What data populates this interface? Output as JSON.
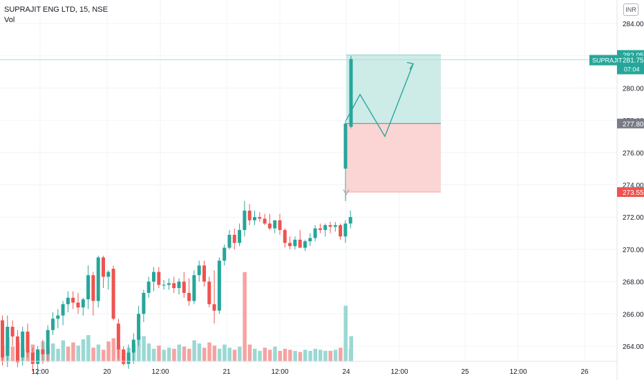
{
  "header": {
    "symbol_title": "SUPRAJIT ENG LTD, 15, NSE",
    "volume_label": "Vol",
    "currency": "INR"
  },
  "colors": {
    "up": "#26a69a",
    "down": "#ef5350",
    "vol_up": "#9bd8d3",
    "vol_down": "#f5a3a2",
    "target_zone": "#cdebe7",
    "stop_zone": "#fbd5d4",
    "projection": "#26a69a",
    "grid": "#f0f3fa"
  },
  "chart_data": {
    "type": "candlestick",
    "symbol": "SUPRAJIT ENG LTD",
    "interval": "15",
    "exchange": "NSE",
    "y_ticks": [
      284.0,
      282.0,
      280.0,
      278.0,
      276.0,
      274.0,
      272.0,
      270.0,
      268.0,
      266.0,
      264.0
    ],
    "x_ticks": [
      "12:00",
      "20",
      "12:00",
      "21",
      "12:00",
      "24",
      "12:00",
      "25",
      "12:00",
      "26"
    ],
    "price_markers": {
      "current": {
        "symbol_label": "SUPRAJIT",
        "price": "281.75",
        "countdown": "07:04"
      },
      "target": "282.05",
      "entry": "277.80",
      "stop": "273.55"
    },
    "candles": [
      [
        265.6,
        265.9,
        262.8,
        263.3
      ],
      [
        263.4,
        265.9,
        262.7,
        265.2
      ],
      [
        265.2,
        265.6,
        264.0,
        264.6
      ],
      [
        264.6,
        265.0,
        262.7,
        263.0
      ],
      [
        263.3,
        265.2,
        262.8,
        264.9
      ],
      [
        264.9,
        265.4,
        263.3,
        263.6
      ],
      [
        263.6,
        263.9,
        262.4,
        262.9
      ],
      [
        262.9,
        264.0,
        262.2,
        263.8
      ],
      [
        263.8,
        264.4,
        262.9,
        263.5
      ],
      [
        263.5,
        265.3,
        263.0,
        265.0
      ],
      [
        265.0,
        266.1,
        264.7,
        265.7
      ],
      [
        265.7,
        266.3,
        265.1,
        265.9
      ],
      [
        265.9,
        266.8,
        265.3,
        266.6
      ],
      [
        266.6,
        267.4,
        266.1,
        267.0
      ],
      [
        267.0,
        267.4,
        266.3,
        266.7
      ],
      [
        266.7,
        267.3,
        266.0,
        266.4
      ],
      [
        266.4,
        267.0,
        265.9,
        266.9
      ],
      [
        266.9,
        269.0,
        266.3,
        268.4
      ],
      [
        268.4,
        268.6,
        265.9,
        266.8
      ],
      [
        266.8,
        269.6,
        266.4,
        269.5
      ],
      [
        269.5,
        269.6,
        267.6,
        268.3
      ],
      [
        268.3,
        268.7,
        267.5,
        268.6
      ],
      [
        268.8,
        269.0,
        265.6,
        265.7
      ],
      [
        265.4,
        265.7,
        263.2,
        263.8
      ],
      [
        263.8,
        264.0,
        262.8,
        262.9
      ],
      [
        262.9,
        264.1,
        262.6,
        263.6
      ],
      [
        263.6,
        264.8,
        262.9,
        264.4
      ],
      [
        264.4,
        266.5,
        264.0,
        266.0
      ],
      [
        266.0,
        267.5,
        265.5,
        267.3
      ],
      [
        267.3,
        268.3,
        267.0,
        268.0
      ],
      [
        268.0,
        268.9,
        267.4,
        268.6
      ],
      [
        268.6,
        268.9,
        267.6,
        267.8
      ],
      [
        267.8,
        268.1,
        267.5,
        267.8
      ],
      [
        267.8,
        268.2,
        267.5,
        267.9
      ],
      [
        267.9,
        268.3,
        267.3,
        267.6
      ],
      [
        267.6,
        268.2,
        267.2,
        268.0
      ],
      [
        268.0,
        268.6,
        267.0,
        267.3
      ],
      [
        267.3,
        268.2,
        266.5,
        266.8
      ],
      [
        266.8,
        268.7,
        266.6,
        268.4
      ],
      [
        268.4,
        269.3,
        268.0,
        269.0
      ],
      [
        269.0,
        269.3,
        267.7,
        268.0
      ],
      [
        268.0,
        268.3,
        266.4,
        266.6
      ],
      [
        266.6,
        268.7,
        265.4,
        266.2
      ],
      [
        266.2,
        269.5,
        266.0,
        269.3
      ],
      [
        269.3,
        270.3,
        269.0,
        270.1
      ],
      [
        270.1,
        271.2,
        270.0,
        270.9
      ],
      [
        270.9,
        271.3,
        270.0,
        270.4
      ],
      [
        270.4,
        271.6,
        270.2,
        271.2
      ],
      [
        271.2,
        273.0,
        270.8,
        272.4
      ],
      [
        272.4,
        272.8,
        271.5,
        271.8
      ],
      [
        271.8,
        272.4,
        271.5,
        272.0
      ],
      [
        272.0,
        272.3,
        271.7,
        271.9
      ],
      [
        271.9,
        272.2,
        271.5,
        271.6
      ],
      [
        271.6,
        272.2,
        271.2,
        271.3
      ],
      [
        271.3,
        271.8,
        271.0,
        271.8
      ],
      [
        271.8,
        272.2,
        270.9,
        271.2
      ],
      [
        271.2,
        271.3,
        270.1,
        270.4
      ],
      [
        270.4,
        270.8,
        270.0,
        270.2
      ],
      [
        270.2,
        270.8,
        270.0,
        270.6
      ],
      [
        270.6,
        271.2,
        270.2,
        270.1
      ],
      [
        270.1,
        270.6,
        269.9,
        270.5
      ],
      [
        270.5,
        271.0,
        270.2,
        270.7
      ],
      [
        270.7,
        271.5,
        270.5,
        271.3
      ],
      [
        271.3,
        271.6,
        271.0,
        271.2
      ],
      [
        271.2,
        271.6,
        270.8,
        271.5
      ],
      [
        271.5,
        271.7,
        271.0,
        271.4
      ],
      [
        271.4,
        271.7,
        271.1,
        271.5
      ],
      [
        271.5,
        271.6,
        270.6,
        270.8
      ],
      [
        270.8,
        271.8,
        270.4,
        271.6
      ],
      [
        271.6,
        272.4,
        271.3,
        272.0
      ],
      [
        275.0,
        278.0,
        273.0,
        277.8
      ],
      [
        277.6,
        282.0,
        277.5,
        281.8
      ]
    ],
    "volumes": [
      [
        1.5,
        0
      ],
      [
        2.3,
        1
      ],
      [
        1.4,
        0
      ],
      [
        1.8,
        0
      ],
      [
        1.2,
        1
      ],
      [
        1.1,
        0
      ],
      [
        1.6,
        0
      ],
      [
        1.0,
        1
      ],
      [
        1.9,
        1
      ],
      [
        1.3,
        0
      ],
      [
        1.7,
        1
      ],
      [
        1.2,
        1
      ],
      [
        2.0,
        1
      ],
      [
        1.4,
        0
      ],
      [
        1.8,
        0
      ],
      [
        1.5,
        1
      ],
      [
        2.1,
        1
      ],
      [
        2.5,
        1
      ],
      [
        1.3,
        0
      ],
      [
        1.6,
        1
      ],
      [
        1.1,
        0
      ],
      [
        1.9,
        0
      ],
      [
        2.2,
        0
      ],
      [
        1.4,
        0
      ],
      [
        1.0,
        0
      ],
      [
        1.3,
        1
      ],
      [
        1.6,
        1
      ],
      [
        2.4,
        1
      ],
      [
        2.4,
        1
      ],
      [
        1.7,
        1
      ],
      [
        1.2,
        1
      ],
      [
        1.5,
        0
      ],
      [
        1.1,
        1
      ],
      [
        1.3,
        1
      ],
      [
        1.2,
        0
      ],
      [
        1.6,
        1
      ],
      [
        1.4,
        0
      ],
      [
        1.2,
        0
      ],
      [
        2.0,
        1
      ],
      [
        1.7,
        1
      ],
      [
        1.3,
        0
      ],
      [
        1.8,
        0
      ],
      [
        1.5,
        0
      ],
      [
        1.2,
        1
      ],
      [
        1.6,
        1
      ],
      [
        1.3,
        1
      ],
      [
        1.1,
        0
      ],
      [
        1.4,
        1
      ],
      [
        8.5,
        0
      ],
      [
        1.6,
        0
      ],
      [
        1.2,
        1
      ],
      [
        1.0,
        1
      ],
      [
        1.3,
        0
      ],
      [
        1.1,
        0
      ],
      [
        1.4,
        1
      ],
      [
        1.0,
        0
      ],
      [
        1.2,
        0
      ],
      [
        1.1,
        0
      ],
      [
        1.0,
        1
      ],
      [
        0.9,
        0
      ],
      [
        1.1,
        1
      ],
      [
        1.0,
        1
      ],
      [
        1.2,
        1
      ],
      [
        1.1,
        1
      ],
      [
        1.0,
        1
      ],
      [
        1.0,
        0
      ],
      [
        1.1,
        1
      ],
      [
        1.3,
        0
      ],
      [
        1.9,
        1
      ],
      [
        1.2,
        1
      ],
      [
        5.3,
        1
      ],
      [
        2.4,
        1
      ]
    ]
  }
}
